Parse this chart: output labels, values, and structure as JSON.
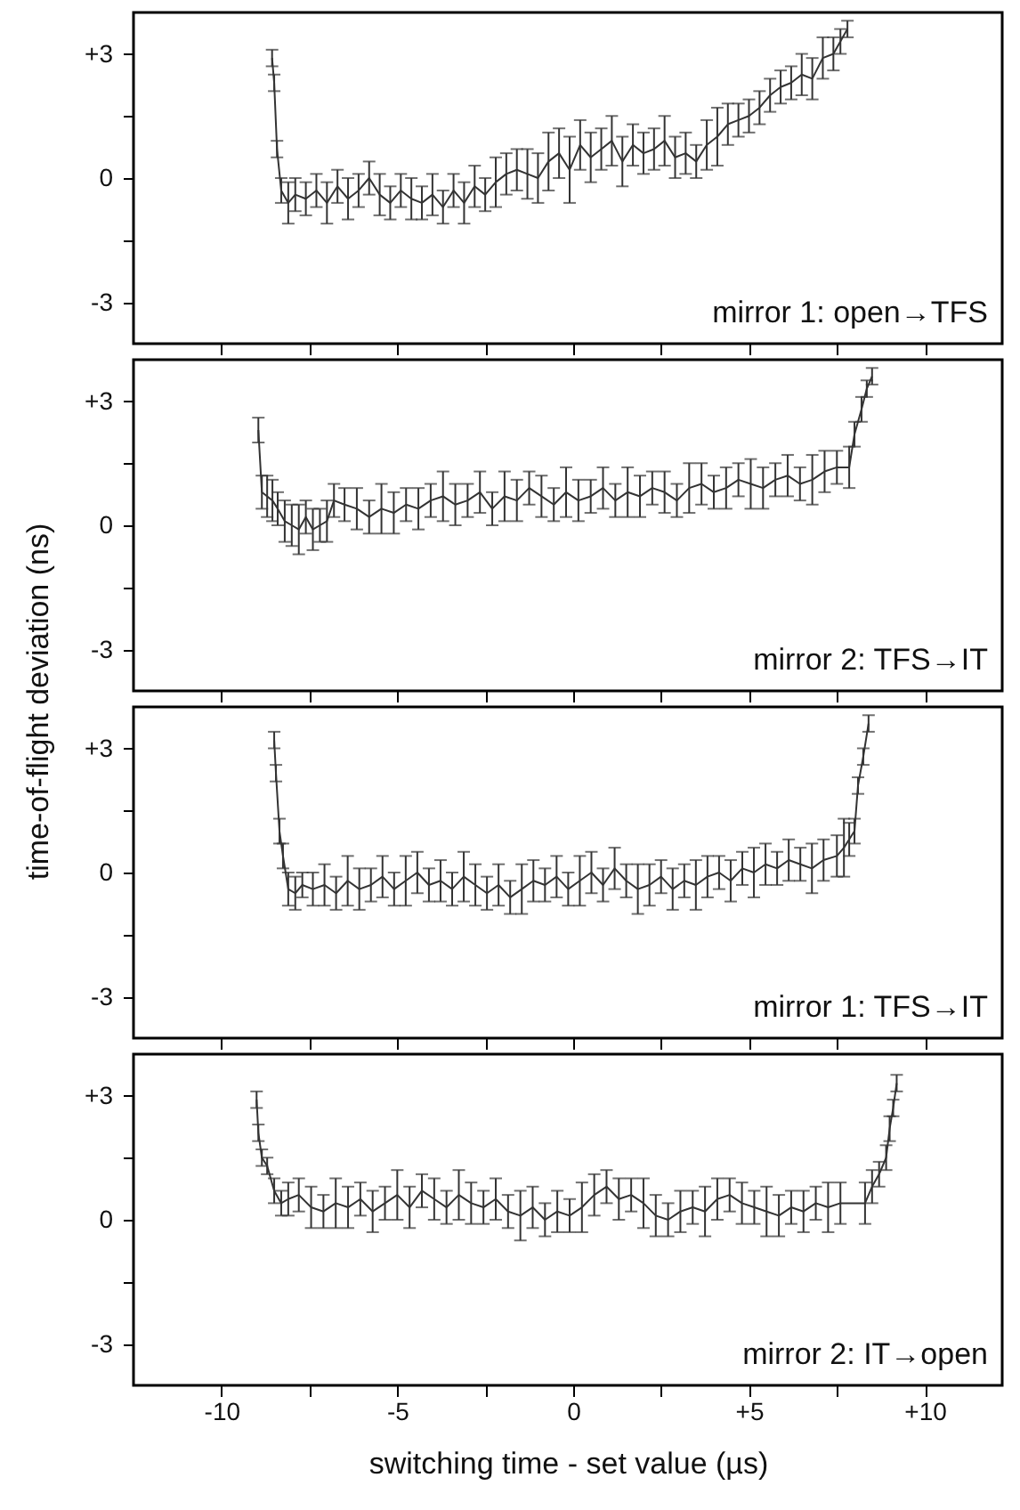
{
  "chart_data": [
    {
      "type": "line",
      "annotations": [
        "mirror 1:   open→TFS"
      ],
      "xlim": [
        -12.5,
        12.2
      ],
      "ylim": [
        -4,
        4
      ],
      "tick_labels": "y",
      "xticks": [
        {
          "value": -10,
          "label": null
        },
        {
          "value": -7.5,
          "label": null
        },
        {
          "value": -5,
          "label": null
        },
        {
          "value": -2.5,
          "label": null
        },
        {
          "value": 0,
          "label": null
        },
        {
          "value": 2.5,
          "label": null
        },
        {
          "value": 5,
          "label": null
        },
        {
          "value": 7.5,
          "label": null
        },
        {
          "value": 10,
          "label": null
        }
      ],
      "yticks": [
        {
          "value": 3,
          "label": "+3"
        },
        {
          "value": 1.5,
          "label": null
        },
        {
          "value": 0,
          "label": "0"
        },
        {
          "value": -1.5,
          "label": null
        },
        {
          "value": -3,
          "label": "-3"
        }
      ],
      "series": [
        {
          "color": "#333333",
          "x": [
            -8.56,
            -8.5,
            -8.42,
            -8.3,
            -8.1,
            -7.9,
            -7.6,
            -7.3,
            -7.0,
            -6.7,
            -6.4,
            -6.1,
            -5.8,
            -5.5,
            -5.2,
            -4.9,
            -4.6,
            -4.3,
            -4.0,
            -3.7,
            -3.4,
            -3.1,
            -2.8,
            -2.5,
            -2.2,
            -1.9,
            -1.6,
            -1.3,
            -1.0,
            -0.7,
            -0.4,
            -0.1,
            0.2,
            0.5,
            0.8,
            1.1,
            1.4,
            1.7,
            2.0,
            2.3,
            2.6,
            2.9,
            3.2,
            3.5,
            3.8,
            4.1,
            4.4,
            4.7,
            5.0,
            5.3,
            5.6,
            5.9,
            6.2,
            6.5,
            6.8,
            7.1,
            7.4,
            7.6,
            7.8
          ],
          "values": [
            2.9,
            2.3,
            0.7,
            -0.3,
            -0.6,
            -0.4,
            -0.5,
            -0.3,
            -0.6,
            -0.2,
            -0.5,
            -0.3,
            0.0,
            -0.4,
            -0.6,
            -0.3,
            -0.5,
            -0.6,
            -0.4,
            -0.7,
            -0.3,
            -0.6,
            -0.2,
            -0.4,
            -0.1,
            0.1,
            0.2,
            0.1,
            0.0,
            0.4,
            0.6,
            0.2,
            0.8,
            0.5,
            0.7,
            0.9,
            0.4,
            0.8,
            0.6,
            0.7,
            0.9,
            0.5,
            0.6,
            0.4,
            0.8,
            1.0,
            1.3,
            1.4,
            1.5,
            1.7,
            2.0,
            2.2,
            2.3,
            2.5,
            2.4,
            2.9,
            3.0,
            3.3,
            3.6
          ],
          "errors": [
            0.2,
            0.2,
            0.2,
            0.3,
            0.5,
            0.4,
            0.4,
            0.4,
            0.5,
            0.4,
            0.5,
            0.4,
            0.4,
            0.5,
            0.4,
            0.4,
            0.5,
            0.4,
            0.5,
            0.4,
            0.4,
            0.5,
            0.5,
            0.4,
            0.6,
            0.5,
            0.5,
            0.6,
            0.6,
            0.7,
            0.6,
            0.8,
            0.6,
            0.6,
            0.5,
            0.6,
            0.6,
            0.5,
            0.5,
            0.5,
            0.6,
            0.5,
            0.5,
            0.4,
            0.6,
            0.7,
            0.5,
            0.4,
            0.4,
            0.4,
            0.4,
            0.4,
            0.4,
            0.5,
            0.5,
            0.5,
            0.4,
            0.3,
            0.2
          ]
        }
      ]
    },
    {
      "type": "line",
      "ylabel": "time-of-flight deviation (ns)",
      "annotations": [
        "mirror 2:   TFS→IT"
      ],
      "xlim": [
        -12.5,
        12.2
      ],
      "ylim": [
        -4,
        4
      ],
      "tick_labels": "y",
      "xticks": [
        {
          "value": -10,
          "label": null
        },
        {
          "value": -7.5,
          "label": null
        },
        {
          "value": -5,
          "label": null
        },
        {
          "value": -2.5,
          "label": null
        },
        {
          "value": 0,
          "label": null
        },
        {
          "value": 2.5,
          "label": null
        },
        {
          "value": 5,
          "label": null
        },
        {
          "value": 7.5,
          "label": null
        },
        {
          "value": 10,
          "label": null
        }
      ],
      "yticks": [
        {
          "value": 3,
          "label": "+3"
        },
        {
          "value": 1.5,
          "label": null
        },
        {
          "value": 0,
          "label": "0"
        },
        {
          "value": -1.5,
          "label": null
        },
        {
          "value": -3,
          "label": "-3"
        }
      ],
      "series": [
        {
          "color": "#333333",
          "x": [
            -8.95,
            -8.85,
            -8.7,
            -8.55,
            -8.4,
            -8.2,
            -8.0,
            -7.8,
            -7.6,
            -7.4,
            -7.2,
            -7.0,
            -6.8,
            -6.5,
            -6.15,
            -5.8,
            -5.45,
            -5.1,
            -4.75,
            -4.4,
            -4.05,
            -3.7,
            -3.35,
            -3.0,
            -2.65,
            -2.3,
            -1.95,
            -1.6,
            -1.25,
            -0.9,
            -0.55,
            -0.2,
            0.15,
            0.5,
            0.85,
            1.2,
            1.55,
            1.9,
            2.25,
            2.6,
            2.95,
            3.3,
            3.65,
            4.0,
            4.35,
            4.7,
            5.05,
            5.4,
            5.75,
            6.1,
            6.45,
            6.8,
            7.15,
            7.5,
            7.85,
            8.0,
            8.2,
            8.35,
            8.5
          ],
          "values": [
            2.3,
            0.8,
            0.7,
            0.6,
            0.4,
            0.1,
            0.0,
            -0.1,
            0.2,
            -0.1,
            0.0,
            0.1,
            0.6,
            0.5,
            0.4,
            0.2,
            0.4,
            0.3,
            0.5,
            0.4,
            0.6,
            0.7,
            0.5,
            0.6,
            0.8,
            0.4,
            0.7,
            0.6,
            0.9,
            0.7,
            0.5,
            0.8,
            0.6,
            0.7,
            0.9,
            0.6,
            0.8,
            0.7,
            0.9,
            0.8,
            0.6,
            0.9,
            1.0,
            0.8,
            0.9,
            1.1,
            1.0,
            0.9,
            1.1,
            1.2,
            1.0,
            1.1,
            1.3,
            1.4,
            1.4,
            2.2,
            2.8,
            3.3,
            3.6
          ],
          "errors": [
            0.3,
            0.4,
            0.5,
            0.5,
            0.4,
            0.5,
            0.5,
            0.6,
            0.4,
            0.5,
            0.4,
            0.5,
            0.4,
            0.4,
            0.5,
            0.4,
            0.6,
            0.5,
            0.4,
            0.5,
            0.4,
            0.6,
            0.5,
            0.4,
            0.5,
            0.4,
            0.6,
            0.5,
            0.4,
            0.5,
            0.4,
            0.6,
            0.5,
            0.4,
            0.5,
            0.4,
            0.6,
            0.5,
            0.4,
            0.5,
            0.4,
            0.6,
            0.5,
            0.4,
            0.5,
            0.4,
            0.6,
            0.5,
            0.4,
            0.5,
            0.4,
            0.6,
            0.5,
            0.4,
            0.5,
            0.3,
            0.3,
            0.2,
            0.2
          ]
        }
      ]
    },
    {
      "type": "line",
      "annotations": [
        "mirror 1:   TFS→IT"
      ],
      "xlim": [
        -12.5,
        12.2
      ],
      "ylim": [
        -4,
        4
      ],
      "tick_labels": "y",
      "xticks": [
        {
          "value": -10,
          "label": null
        },
        {
          "value": -7.5,
          "label": null
        },
        {
          "value": -5,
          "label": null
        },
        {
          "value": -2.5,
          "label": null
        },
        {
          "value": 0,
          "label": null
        },
        {
          "value": 2.5,
          "label": null
        },
        {
          "value": 5,
          "label": null
        },
        {
          "value": 7.5,
          "label": null
        },
        {
          "value": 10,
          "label": null
        }
      ],
      "yticks": [
        {
          "value": 3,
          "label": "+3"
        },
        {
          "value": 1.5,
          "label": null
        },
        {
          "value": 0,
          "label": "0"
        },
        {
          "value": -1.5,
          "label": null
        },
        {
          "value": -3,
          "label": "-3"
        }
      ],
      "series": [
        {
          "color": "#333333",
          "x": [
            -8.5,
            -8.45,
            -8.35,
            -8.25,
            -8.1,
            -7.9,
            -7.7,
            -7.4,
            -7.07,
            -6.74,
            -6.41,
            -6.08,
            -5.75,
            -5.42,
            -5.09,
            -4.76,
            -4.43,
            -4.1,
            -3.77,
            -3.44,
            -3.11,
            -2.78,
            -2.45,
            -2.12,
            -1.79,
            -1.46,
            -1.13,
            -0.8,
            -0.47,
            -0.14,
            0.19,
            0.52,
            0.85,
            1.18,
            1.51,
            1.84,
            2.17,
            2.5,
            2.83,
            3.16,
            3.49,
            3.82,
            4.15,
            4.48,
            4.81,
            5.14,
            5.47,
            5.8,
            6.13,
            6.46,
            6.79,
            7.12,
            7.5,
            7.7,
            7.85,
            8.0,
            8.1,
            8.25,
            8.4
          ],
          "values": [
            3.2,
            2.4,
            1.0,
            0.4,
            -0.4,
            -0.5,
            -0.3,
            -0.4,
            -0.3,
            -0.5,
            -0.2,
            -0.4,
            -0.3,
            -0.1,
            -0.4,
            -0.2,
            0.0,
            -0.3,
            -0.2,
            -0.4,
            -0.1,
            -0.3,
            -0.5,
            -0.3,
            -0.6,
            -0.4,
            -0.2,
            -0.3,
            -0.1,
            -0.4,
            -0.2,
            0.0,
            -0.3,
            0.1,
            -0.2,
            -0.4,
            -0.3,
            -0.1,
            -0.4,
            -0.2,
            -0.3,
            -0.1,
            0.0,
            -0.2,
            0.1,
            0.0,
            0.2,
            0.1,
            0.3,
            0.2,
            0.1,
            0.3,
            0.4,
            0.6,
            0.8,
            1.0,
            2.1,
            2.8,
            3.6
          ],
          "errors": [
            0.2,
            0.2,
            0.3,
            0.3,
            0.4,
            0.4,
            0.3,
            0.4,
            0.5,
            0.4,
            0.6,
            0.5,
            0.4,
            0.5,
            0.4,
            0.6,
            0.5,
            0.4,
            0.5,
            0.4,
            0.6,
            0.5,
            0.4,
            0.5,
            0.4,
            0.6,
            0.5,
            0.4,
            0.5,
            0.4,
            0.6,
            0.5,
            0.4,
            0.5,
            0.4,
            0.6,
            0.5,
            0.4,
            0.5,
            0.4,
            0.6,
            0.5,
            0.4,
            0.5,
            0.4,
            0.6,
            0.5,
            0.4,
            0.5,
            0.4,
            0.6,
            0.5,
            0.5,
            0.7,
            0.4,
            0.3,
            0.2,
            0.2,
            0.2
          ]
        }
      ]
    },
    {
      "type": "line",
      "xlabel": "switching time - set value (µs)",
      "annotations": [
        "mirror 2:   IT→open"
      ],
      "xlim": [
        -12.5,
        12.2
      ],
      "ylim": [
        -4,
        4
      ],
      "xticks": [
        {
          "value": -10,
          "label": "-10"
        },
        {
          "value": -7.5,
          "label": null
        },
        {
          "value": -5,
          "label": "-5"
        },
        {
          "value": -2.5,
          "label": null
        },
        {
          "value": 0,
          "label": "0"
        },
        {
          "value": 2.5,
          "label": null
        },
        {
          "value": 5,
          "label": "+5"
        },
        {
          "value": 7.5,
          "label": null
        },
        {
          "value": 10,
          "label": "+10"
        }
      ],
      "yticks": [
        {
          "value": 3,
          "label": "+3"
        },
        {
          "value": 1.5,
          "label": null
        },
        {
          "value": 0,
          "label": "0"
        },
        {
          "value": -1.5,
          "label": null
        },
        {
          "value": -3,
          "label": "-3"
        }
      ],
      "series": [
        {
          "color": "#333333",
          "x": [
            -9.0,
            -8.95,
            -8.85,
            -8.7,
            -8.5,
            -8.3,
            -8.1,
            -7.8,
            -7.45,
            -7.1,
            -6.75,
            -6.4,
            -6.05,
            -5.7,
            -5.35,
            -5.0,
            -4.65,
            -4.3,
            -3.95,
            -3.6,
            -3.25,
            -2.9,
            -2.55,
            -2.2,
            -1.85,
            -1.5,
            -1.15,
            -0.8,
            -0.45,
            -0.1,
            0.25,
            0.6,
            0.95,
            1.3,
            1.65,
            2.0,
            2.35,
            2.7,
            3.05,
            3.4,
            3.75,
            4.1,
            4.45,
            4.8,
            5.15,
            5.5,
            5.85,
            6.2,
            6.55,
            6.9,
            7.25,
            7.6,
            8.3,
            8.5,
            8.7,
            8.9,
            9.0,
            9.1,
            9.2
          ],
          "values": [
            2.9,
            2.1,
            1.5,
            1.3,
            0.7,
            0.4,
            0.5,
            0.6,
            0.3,
            0.2,
            0.4,
            0.3,
            0.5,
            0.2,
            0.4,
            0.6,
            0.3,
            0.7,
            0.5,
            0.3,
            0.6,
            0.4,
            0.3,
            0.5,
            0.2,
            0.1,
            0.3,
            0.0,
            0.2,
            0.1,
            0.3,
            0.6,
            0.8,
            0.5,
            0.6,
            0.4,
            0.1,
            0.0,
            0.2,
            0.3,
            0.2,
            0.5,
            0.6,
            0.4,
            0.3,
            0.2,
            0.1,
            0.3,
            0.2,
            0.4,
            0.3,
            0.4,
            0.4,
            0.8,
            1.1,
            1.5,
            2.2,
            2.7,
            3.3
          ],
          "errors": [
            0.2,
            0.2,
            0.2,
            0.2,
            0.3,
            0.3,
            0.4,
            0.4,
            0.5,
            0.4,
            0.6,
            0.5,
            0.4,
            0.5,
            0.4,
            0.6,
            0.5,
            0.4,
            0.5,
            0.4,
            0.6,
            0.5,
            0.4,
            0.5,
            0.4,
            0.6,
            0.5,
            0.4,
            0.5,
            0.4,
            0.6,
            0.5,
            0.4,
            0.5,
            0.4,
            0.6,
            0.5,
            0.4,
            0.5,
            0.4,
            0.6,
            0.5,
            0.4,
            0.5,
            0.4,
            0.6,
            0.5,
            0.4,
            0.5,
            0.4,
            0.6,
            0.5,
            0.5,
            0.4,
            0.3,
            0.3,
            0.3,
            0.2,
            0.2
          ]
        }
      ]
    }
  ]
}
